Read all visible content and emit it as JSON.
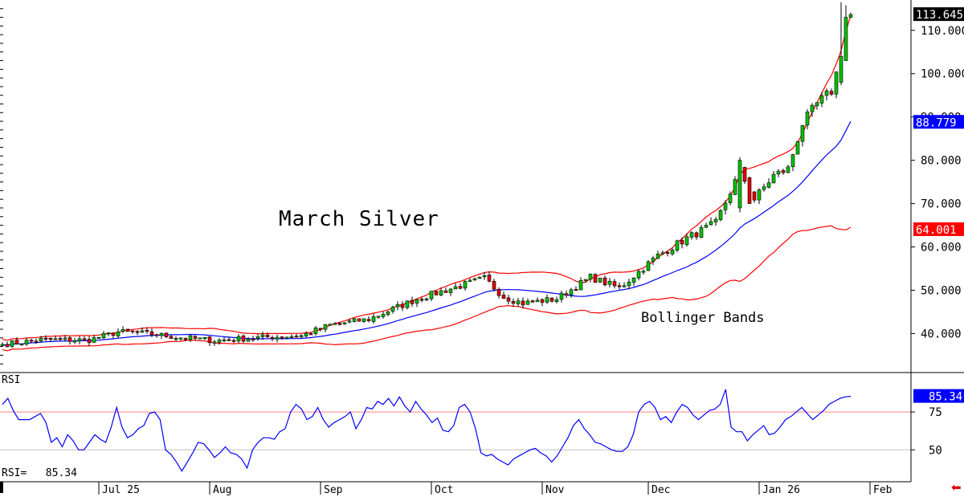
{
  "chart_data": [
    {
      "type": "candlestick",
      "title": "March Silver",
      "annotation": "Bollinger Bands",
      "ylim": [
        31,
        117
      ],
      "y_ticks": [
        "40.000",
        "50.000",
        "60.000",
        "70.000",
        "80.000",
        "90.000",
        "100.000",
        "110.000"
      ],
      "y_tick_values": [
        40,
        50,
        60,
        70,
        80,
        90,
        100,
        110
      ],
      "last_price": "113.645",
      "upper_band_value": "64.001",
      "middle_band_value": "88.779",
      "x_month_labels": [
        "Jul 25",
        "Aug",
        "Sep",
        "Oct",
        "Nov",
        "Dec",
        "Jan 26",
        "Feb"
      ],
      "x_month_index": [
        20,
        43,
        66,
        89,
        112,
        134,
        157,
        180
      ],
      "n_bars": 182,
      "close_anchors": [
        [
          0,
          37.5
        ],
        [
          8,
          38.6
        ],
        [
          18,
          38.5
        ],
        [
          24,
          40.4
        ],
        [
          30,
          40.0
        ],
        [
          36,
          39.2
        ],
        [
          44,
          38.4
        ],
        [
          55,
          39.2
        ],
        [
          62,
          39.5
        ],
        [
          68,
          42.0
        ],
        [
          76,
          43.3
        ],
        [
          86,
          48.0
        ],
        [
          100,
          52.7
        ],
        [
          104,
          48.5
        ],
        [
          108,
          47.0
        ],
        [
          115,
          48.0
        ],
        [
          122,
          53.0
        ],
        [
          128,
          50.5
        ],
        [
          136,
          58.0
        ],
        [
          142,
          62.0
        ],
        [
          148,
          65.5
        ],
        [
          153,
          77.5
        ],
        [
          156,
          71.0
        ],
        [
          160,
          76.5
        ],
        [
          163,
          78.0
        ],
        [
          166,
          88.5
        ],
        [
          169,
          93.0
        ],
        [
          172,
          96.0
        ],
        [
          174,
          104.0
        ],
        [
          175,
          113.0
        ],
        [
          176,
          113.645
        ]
      ],
      "colors": {
        "up": "#00c000",
        "down": "#e00000",
        "upper_band": "#ff0000",
        "middle_band": "#0000ff",
        "lower_band": "#ff0000",
        "last_price_bg": "#000000",
        "middle_badge_bg": "#0000ff",
        "band_badge_bg": "#ff0000"
      }
    },
    {
      "type": "line",
      "title": "RSI",
      "ylim": [
        30,
        100
      ],
      "y_ticks": [
        "50",
        "75"
      ],
      "y_tick_values": [
        50,
        75
      ],
      "reference_lines": [
        {
          "value": 75,
          "color": "#ff8080"
        },
        {
          "value": 50,
          "color": "#c0c0c0"
        }
      ],
      "last_value": "85.34",
      "readout": "RSI=   85.34",
      "values": [
        80,
        84,
        76,
        70,
        70,
        70,
        72,
        74,
        68,
        55,
        58,
        52,
        60,
        56,
        50,
        50,
        55,
        60,
        57,
        55,
        65,
        78,
        65,
        58,
        60,
        64,
        66,
        74,
        75,
        70,
        50,
        47,
        42,
        36,
        42,
        48,
        55,
        54,
        50,
        45,
        48,
        52,
        48,
        47,
        44,
        38,
        50,
        55,
        58,
        58,
        57,
        62,
        64,
        75,
        80,
        77,
        70,
        72,
        78,
        70,
        65,
        68,
        70,
        72,
        75,
        64,
        70,
        78,
        77,
        82,
        80,
        84,
        79,
        85,
        79,
        75,
        82,
        77,
        73,
        68,
        71,
        63,
        62,
        66,
        78,
        80,
        75,
        64,
        48,
        46,
        47,
        44,
        42,
        40,
        44,
        46,
        48,
        50,
        51,
        48,
        46,
        42,
        46,
        52,
        58,
        66,
        70,
        64,
        60,
        55,
        54,
        52,
        50,
        49,
        49,
        52,
        60,
        75,
        80,
        82,
        78,
        70,
        72,
        68,
        75,
        80,
        78,
        73,
        70,
        73,
        76,
        77,
        80,
        90,
        65,
        62,
        62,
        56,
        60,
        63,
        66,
        60,
        61,
        65,
        70,
        72,
        75,
        78,
        74,
        70,
        73,
        76,
        80,
        82,
        84,
        85,
        85.34
      ],
      "colors": {
        "line": "#0000ff",
        "badge_bg": "#0000ff"
      }
    }
  ]
}
